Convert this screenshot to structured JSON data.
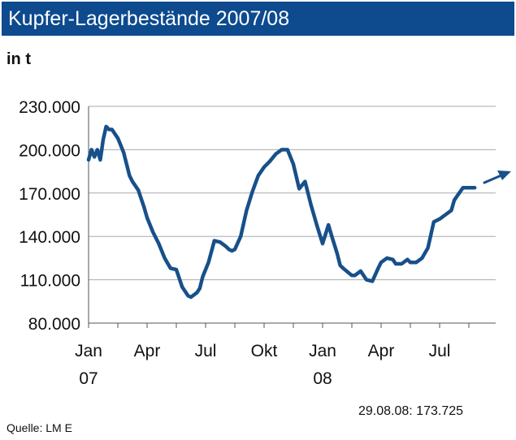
{
  "header": {
    "title": "Kupfer-Lagerbestände 2007/08"
  },
  "unit_label": "in t",
  "footnote": "29.08.08: 173.725",
  "source": "Quelle: LM E",
  "colors": {
    "title_bar": "#0d4a8e",
    "line": "#17508a",
    "grid": "#aaaaaa"
  },
  "chart_data": {
    "type": "line",
    "title": "Kupfer-Lagerbestände 2007/08",
    "ylabel": "in t",
    "xlabel": "",
    "ylim": [
      80000,
      230000
    ],
    "xlim": [
      0,
      20
    ],
    "grid": true,
    "y_ticks": [
      {
        "value": 80000,
        "label": "80.000"
      },
      {
        "value": 110000,
        "label": "110.000"
      },
      {
        "value": 140000,
        "label": "140.000"
      },
      {
        "value": 170000,
        "label": "170.000"
      },
      {
        "value": 200000,
        "label": "200.000"
      },
      {
        "value": 230000,
        "label": "230.000"
      }
    ],
    "x_ticks": [
      {
        "x": 0,
        "label": "Jan",
        "sublabel": "07"
      },
      {
        "x": 2,
        "label": "Apr",
        "sublabel": ""
      },
      {
        "x": 4,
        "label": "Jul",
        "sublabel": ""
      },
      {
        "x": 6,
        "label": "Okt",
        "sublabel": ""
      },
      {
        "x": 8,
        "label": "Jan",
        "sublabel": "08"
      },
      {
        "x": 10,
        "label": "Apr",
        "sublabel": ""
      },
      {
        "x": 12,
        "label": "Jul",
        "sublabel": ""
      }
    ],
    "series": [
      {
        "x": [
          0,
          0.1,
          0.2,
          0.3,
          0.4,
          0.5,
          0.6,
          0.7,
          0.8,
          1.0,
          1.2,
          1.4,
          1.5,
          1.7,
          1.9,
          2.0,
          2.2,
          2.4,
          2.6,
          2.8,
          3.0,
          3.2,
          3.4,
          3.5,
          3.7,
          3.8,
          3.9,
          4.1,
          4.3,
          4.5,
          4.7,
          4.8,
          4.9,
          5.0,
          5.2,
          5.4,
          5.6,
          5.8,
          6.0,
          6.2,
          6.4,
          6.6,
          6.8,
          7.0,
          7.2,
          7.4,
          7.6,
          7.8,
          8.0,
          8.2,
          8.3,
          8.5,
          8.6,
          8.7,
          9.0,
          9.1,
          9.3,
          9.5,
          9.7,
          9.9,
          10.0,
          10.2,
          10.4,
          10.5,
          10.7,
          10.9,
          11.0,
          11.2,
          11.4,
          11.6,
          11.8,
          12.0,
          12.2,
          12.4,
          12.5,
          12.6,
          12.8,
          13.0,
          13.1,
          13.2
        ],
        "values": [
          193000,
          200000,
          195000,
          200000,
          193000,
          207000,
          216000,
          214000,
          214000,
          208000,
          198000,
          182000,
          178000,
          172000,
          160000,
          153000,
          143000,
          135000,
          125000,
          118000,
          117000,
          105000,
          99000,
          98000,
          101000,
          104000,
          112000,
          122000,
          137000,
          136000,
          133000,
          131000,
          130000,
          131000,
          140000,
          158000,
          171000,
          182000,
          188000,
          192000,
          197000,
          200000,
          200000,
          190000,
          173000,
          178000,
          162000,
          148000,
          135000,
          148000,
          141000,
          128000,
          120000,
          118000,
          113000,
          113000,
          116000,
          110000,
          109000,
          118000,
          122000,
          125000,
          124000,
          121000,
          121000,
          124000,
          122000,
          122000,
          125000,
          132000,
          150000,
          152000,
          155000,
          158000,
          165000,
          168000,
          173725,
          173725,
          173725,
          173725
        ]
      }
    ]
  }
}
